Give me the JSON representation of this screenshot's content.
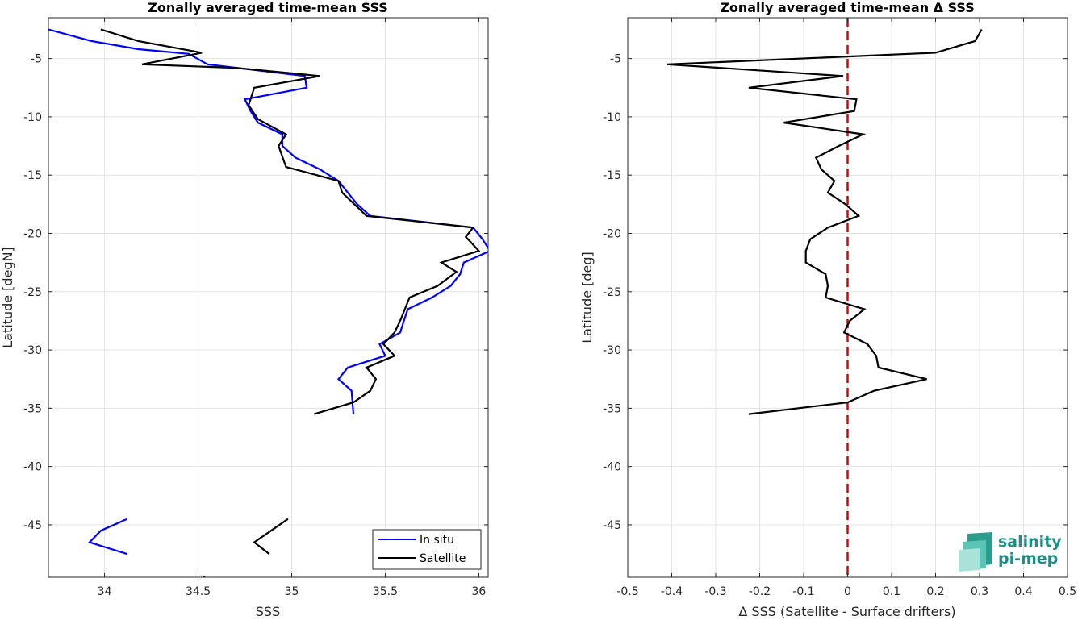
{
  "colors": {
    "in_situ": "#0000ff",
    "satellite": "#000000",
    "zero_line": "#e00000",
    "grid": "#e3e3e3",
    "axis": "#262626",
    "logo": "#1d8f86"
  },
  "logo": {
    "line1": "salinity",
    "line2": "pi-mep"
  },
  "chart_data": [
    {
      "type": "line",
      "title": "Zonally averaged time-mean SSS",
      "xlabel": "SSS",
      "ylabel": "Latitude [degN]",
      "xlim": [
        33.7,
        36.05
      ],
      "ylim": [
        -49.5,
        -1.5
      ],
      "xticks": [
        34,
        34.5,
        35,
        35.5,
        36
      ],
      "xtick_labels": [
        "34",
        "34.5",
        "35",
        "35.5",
        "36"
      ],
      "yticks": [
        -5,
        -10,
        -15,
        -20,
        -25,
        -30,
        -35,
        -40,
        -45
      ],
      "ytick_labels": [
        "-5",
        "-10",
        "-15",
        "-20",
        "-25",
        "-30",
        "-35",
        "-40",
        "-45"
      ],
      "grid": true,
      "legend": "bottom-right",
      "series": [
        {
          "name": "In situ",
          "color": "#0000ff",
          "segments": [
            [
              [
                33.7,
                -2.5
              ],
              [
                33.93,
                -3.5
              ],
              [
                34.18,
                -4.2
              ],
              [
                34.45,
                -4.6
              ],
              [
                34.55,
                -5.5
              ],
              [
                35.07,
                -6.5
              ],
              [
                35.08,
                -7.5
              ],
              [
                34.75,
                -8.5
              ],
              [
                34.78,
                -9.5
              ],
              [
                34.82,
                -10.5
              ],
              [
                34.95,
                -11.5
              ],
              [
                34.95,
                -12.5
              ],
              [
                35.02,
                -13.5
              ],
              [
                35.15,
                -14.5
              ],
              [
                35.25,
                -15.5
              ],
              [
                35.3,
                -16.5
              ],
              [
                35.35,
                -17.5
              ],
              [
                35.42,
                -18.5
              ],
              [
                35.97,
                -19.5
              ],
              [
                36.02,
                -20.5
              ],
              [
                36.06,
                -21.5
              ],
              [
                35.92,
                -22.5
              ],
              [
                35.9,
                -23.5
              ],
              [
                35.85,
                -24.5
              ],
              [
                35.75,
                -25.5
              ],
              [
                35.62,
                -26.5
              ],
              [
                35.6,
                -27.5
              ],
              [
                35.58,
                -28.5
              ],
              [
                35.47,
                -29.5
              ],
              [
                35.5,
                -30.5
              ],
              [
                35.3,
                -31.5
              ],
              [
                35.25,
                -32.5
              ],
              [
                35.32,
                -33.5
              ],
              [
                35.33,
                -35.5
              ]
            ],
            [
              [
                34.12,
                -44.5
              ],
              [
                33.98,
                -45.5
              ],
              [
                33.92,
                -46.5
              ],
              [
                34.12,
                -47.5
              ]
            ]
          ]
        },
        {
          "name": "Satellite",
          "color": "#000000",
          "segments": [
            [
              [
                33.98,
                -2.5
              ],
              [
                34.18,
                -3.5
              ],
              [
                34.52,
                -4.5
              ],
              [
                34.2,
                -5.5
              ],
              [
                34.7,
                -5.8
              ],
              [
                35.15,
                -6.5
              ],
              [
                34.8,
                -7.5
              ],
              [
                34.77,
                -9
              ],
              [
                34.82,
                -10.2
              ],
              [
                34.97,
                -11.5
              ],
              [
                34.93,
                -12.5
              ],
              [
                34.97,
                -14.3
              ],
              [
                35.25,
                -15.5
              ],
              [
                35.27,
                -16.5
              ],
              [
                35.4,
                -18.5
              ],
              [
                35.97,
                -19.5
              ],
              [
                35.93,
                -20.3
              ],
              [
                35.96,
                -20.8
              ],
              [
                36.0,
                -21.5
              ],
              [
                35.8,
                -22.5
              ],
              [
                35.88,
                -23.3
              ],
              [
                35.78,
                -24.5
              ],
              [
                35.63,
                -25.5
              ],
              [
                35.58,
                -27.5
              ],
              [
                35.55,
                -28.5
              ],
              [
                35.49,
                -29.5
              ],
              [
                35.55,
                -30.5
              ],
              [
                35.4,
                -31.5
              ],
              [
                35.45,
                -32.5
              ],
              [
                35.42,
                -33.5
              ],
              [
                35.33,
                -34.5
              ],
              [
                35.12,
                -35.5
              ]
            ],
            [
              [
                34.98,
                -44.5
              ],
              [
                34.8,
                -46.5
              ],
              [
                34.88,
                -47.5
              ]
            ],
            [
              [
                34.53,
                -49.4
              ],
              [
                34.54,
                -49.6
              ]
            ]
          ]
        }
      ]
    },
    {
      "type": "line",
      "title": "Zonally averaged time-mean Δ SSS",
      "xlabel": "Δ SSS (Satellite - Surface drifters)",
      "ylabel": "Latitude [deg]",
      "xlim": [
        -0.5,
        0.5
      ],
      "ylim": [
        -49.5,
        -1.5
      ],
      "xticks": [
        -0.5,
        -0.4,
        -0.3,
        -0.2,
        -0.1,
        0,
        0.1,
        0.2,
        0.3,
        0.4,
        0.5
      ],
      "xtick_labels": [
        "-0.5",
        "-0.4",
        "-0.3",
        "-0.2",
        "-0.1",
        "0",
        "0.1",
        "0.2",
        "0.3",
        "0.4",
        "0.5"
      ],
      "yticks": [
        -5,
        -10,
        -15,
        -20,
        -25,
        -30,
        -35,
        -40,
        -45
      ],
      "ytick_labels": [
        "-5",
        "-10",
        "-15",
        "-20",
        "-25",
        "-30",
        "-35",
        "-40",
        "-45"
      ],
      "grid": true,
      "reference_line": {
        "x": 0,
        "style": "dashed",
        "color": "#e00000"
      },
      "series": [
        {
          "color": "#000000",
          "segments": [
            [
              [
                0.305,
                -2.5
              ],
              [
                0.29,
                -3.5
              ],
              [
                0.2,
                -4.5
              ],
              [
                -0.41,
                -5.5
              ],
              [
                -0.01,
                -6.5
              ],
              [
                -0.225,
                -7.5
              ],
              [
                0.02,
                -8.5
              ],
              [
                0.015,
                -9.5
              ],
              [
                -0.145,
                -10.5
              ],
              [
                0.035,
                -11.5
              ],
              [
                -0.02,
                -12.5
              ],
              [
                -0.072,
                -13.5
              ],
              [
                -0.06,
                -14.5
              ],
              [
                -0.03,
                -15.5
              ],
              [
                -0.045,
                -16.5
              ],
              [
                -0.005,
                -17.5
              ],
              [
                0.025,
                -18.5
              ],
              [
                -0.045,
                -19.5
              ],
              [
                -0.085,
                -20.5
              ],
              [
                -0.095,
                -21.5
              ],
              [
                -0.095,
                -22.5
              ],
              [
                -0.05,
                -23.5
              ],
              [
                -0.045,
                -24.5
              ],
              [
                -0.05,
                -25.5
              ],
              [
                0.038,
                -26.5
              ],
              [
                0.005,
                -27.5
              ],
              [
                -0.008,
                -28.5
              ],
              [
                0.045,
                -29.5
              ],
              [
                0.065,
                -30.5
              ],
              [
                0.07,
                -31.5
              ],
              [
                0.18,
                -32.5
              ],
              [
                0.06,
                -33.5
              ],
              [
                0.0,
                -34.5
              ],
              [
                -0.225,
                -35.5
              ]
            ]
          ]
        }
      ]
    }
  ]
}
